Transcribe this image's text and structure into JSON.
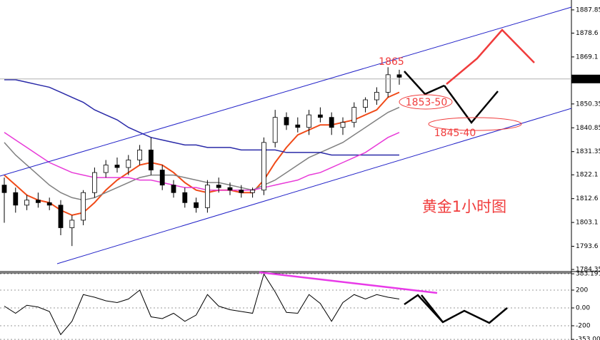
{
  "chart_data": [
    {
      "type": "candlestick",
      "title": "黄金1小时图",
      "annotations": [
        "1865",
        "1853-50",
        "1845-40"
      ],
      "current_price": 1860.31,
      "open": [
        1818,
        1815,
        1810,
        1812,
        1811,
        1810,
        1801,
        1804,
        1815,
        1823,
        1826,
        1825,
        1828,
        1832,
        1824,
        1818,
        1815,
        1811,
        1809,
        1818,
        1817,
        1816,
        1815,
        1816,
        1835,
        1845,
        1842,
        1841,
        1846,
        1845,
        1841,
        1843,
        1849,
        1852,
        1855,
        1862
      ],
      "high": [
        1821,
        1817,
        1814,
        1815,
        1813,
        1812,
        1806,
        1816,
        1825,
        1828,
        1829,
        1830,
        1834,
        1837,
        1826,
        1820,
        1817,
        1813,
        1820,
        1821,
        1819,
        1818,
        1817,
        1837,
        1848,
        1847,
        1845,
        1848,
        1849,
        1847,
        1845,
        1851,
        1853,
        1857,
        1865,
        1864
      ],
      "low": [
        1803,
        1807,
        1808,
        1809,
        1808,
        1798,
        1793.7,
        1802,
        1813,
        1821,
        1823,
        1822,
        1826,
        1822,
        1816,
        1813,
        1809,
        1807,
        1807,
        1815,
        1814,
        1813,
        1813,
        1814,
        1833,
        1840,
        1839,
        1838,
        1843,
        1838,
        1838,
        1841,
        1847,
        1850,
        1853,
        1858
      ],
      "close": [
        1815,
        1810,
        1812,
        1811,
        1810,
        1801,
        1804,
        1815,
        1823,
        1826,
        1825,
        1828,
        1832,
        1824,
        1818,
        1815,
        1811,
        1809,
        1818,
        1817,
        1816,
        1815,
        1816,
        1835,
        1845,
        1842,
        1841,
        1846,
        1845,
        1841,
        1843,
        1849,
        1852,
        1855,
        1862,
        1861
      ],
      "overlays": [
        {
          "color": "#f04a18",
          "values": [
            1822,
            1818,
            1814,
            1812,
            1811,
            1808,
            1806,
            1807,
            1811,
            1816,
            1820,
            1823,
            1826,
            1827,
            1826,
            1823,
            1819,
            1816,
            1815,
            1816,
            1816,
            1815,
            1815,
            1820,
            1827,
            1833,
            1838,
            1840,
            1842,
            1842,
            1843,
            1844,
            1846,
            1848,
            1853,
            1855
          ]
        },
        {
          "color": "#808080",
          "values": [
            1835,
            1830,
            1826,
            1822,
            1818,
            1815,
            1813,
            1812,
            1813,
            1815,
            1817,
            1819,
            1821,
            1822,
            1822,
            1822,
            1821,
            1820,
            1819,
            1819,
            1818,
            1817,
            1816,
            1818,
            1820,
            1823,
            1826,
            1829,
            1831,
            1833,
            1835,
            1838,
            1841,
            1844,
            1847,
            1849
          ]
        },
        {
          "color": "#2a2aa8",
          "values": [
            1860,
            1860,
            1859,
            1858,
            1857,
            1855,
            1853,
            1851,
            1848,
            1846,
            1844,
            1841,
            1839,
            1837,
            1836,
            1835,
            1834,
            1834,
            1833,
            1833,
            1833,
            1832,
            1832,
            1832,
            1832,
            1831,
            1831,
            1831,
            1831,
            1830,
            1830,
            1830,
            1830,
            1830,
            1830,
            1830
          ]
        },
        {
          "color": "#e83ad8",
          "values": [
            1839,
            1836,
            1833,
            1830,
            1827,
            1825,
            1823,
            1822,
            1821,
            1821,
            1821,
            1821,
            1820,
            1820,
            1819,
            1818,
            1817,
            1817,
            1816,
            1816,
            1816,
            1816,
            1816,
            1817,
            1818,
            1819,
            1820,
            1822,
            1823,
            1825,
            1827,
            1829,
            1831,
            1834,
            1837,
            1839
          ]
        }
      ],
      "ylim": [
        1783.8,
        1891.8
      ],
      "yticks": [
        1887.85,
        1878.6,
        1869.1,
        1850.35,
        1840.85,
        1831.35,
        1822.1,
        1812.6,
        1803.1,
        1793.6,
        1784.35
      ]
    },
    {
      "type": "line",
      "color": "#000000",
      "values": [
        20,
        -60,
        30,
        10,
        -40,
        -300,
        -150,
        150,
        120,
        80,
        60,
        100,
        200,
        -100,
        -120,
        -60,
        -150,
        -80,
        150,
        20,
        -20,
        -40,
        -60,
        380,
        180,
        -50,
        -60,
        150,
        50,
        -150,
        60,
        150,
        100,
        150,
        120,
        100
      ],
      "ylim": [
        -360,
        384
      ],
      "yticks": [
        383.1918,
        200,
        {
          "value": 0,
          "label": "0.00"
        },
        -200,
        -353.007
      ]
    }
  ]
}
